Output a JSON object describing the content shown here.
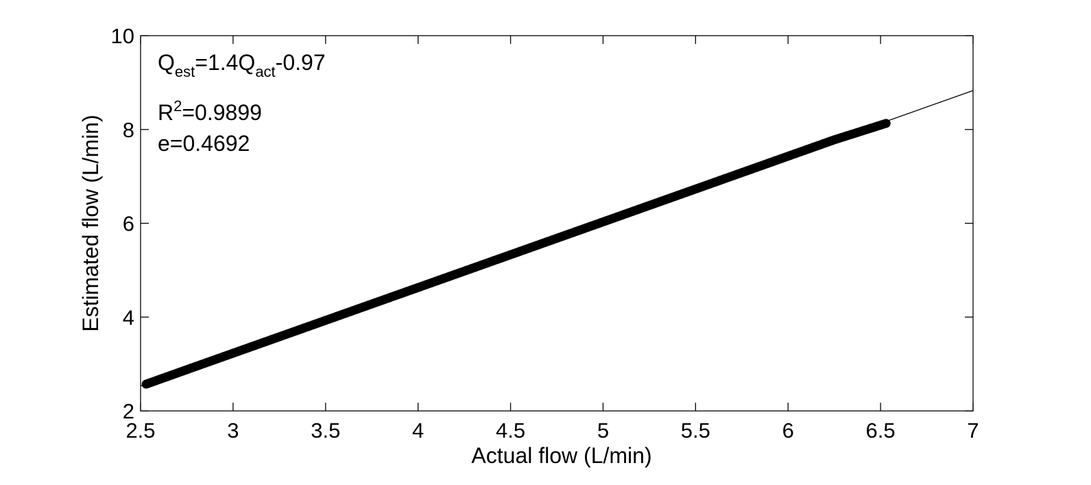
{
  "chart_data": {
    "type": "scatter",
    "xlabel": "Actual flow (L/min)",
    "ylabel": "Estimated flow (L/min)",
    "xlim": [
      2.5,
      7
    ],
    "ylim": [
      2,
      10
    ],
    "xticks": [
      2.5,
      3,
      3.5,
      4,
      4.5,
      5,
      5.5,
      6,
      6.5,
      7
    ],
    "xtick_labels": [
      "2.5",
      "3",
      "3.5",
      "4",
      "4.5",
      "5",
      "5.5",
      "6",
      "6.5",
      "7"
    ],
    "yticks": [
      2,
      4,
      6,
      8,
      10
    ],
    "ytick_labels": [
      "2",
      "4",
      "6",
      "8",
      "10"
    ],
    "grid": false,
    "series": [
      {
        "type": "scatter",
        "color": "#000000",
        "x_range": [
          2.53,
          6.53
        ],
        "note_marker": "filled-circle",
        "x": [
          2.53,
          2.75,
          3.0,
          3.25,
          3.5,
          3.75,
          4.0,
          4.25,
          4.5,
          4.75,
          5.0,
          5.25,
          5.5,
          5.75,
          6.0,
          6.25,
          6.53
        ],
        "y": [
          2.57,
          2.88,
          3.23,
          3.58,
          3.93,
          4.28,
          4.63,
          4.98,
          5.33,
          5.68,
          6.03,
          6.38,
          6.73,
          7.08,
          7.43,
          7.78,
          8.13
        ]
      },
      {
        "type": "line",
        "color": "#000000",
        "slope": 1.4,
        "intercept": -0.97,
        "x": [
          2.5,
          7.0
        ],
        "y": [
          2.53,
          8.83
        ]
      }
    ],
    "annotations": {
      "equation": {
        "q1": "Q",
        "sub1": "est",
        "mid": "=1.4Q",
        "sub2": "act",
        "tail": "-0.97"
      },
      "r2": {
        "base": "R",
        "sup": "2",
        "tail": "=0.9899"
      },
      "error": "e=0.4692"
    }
  }
}
